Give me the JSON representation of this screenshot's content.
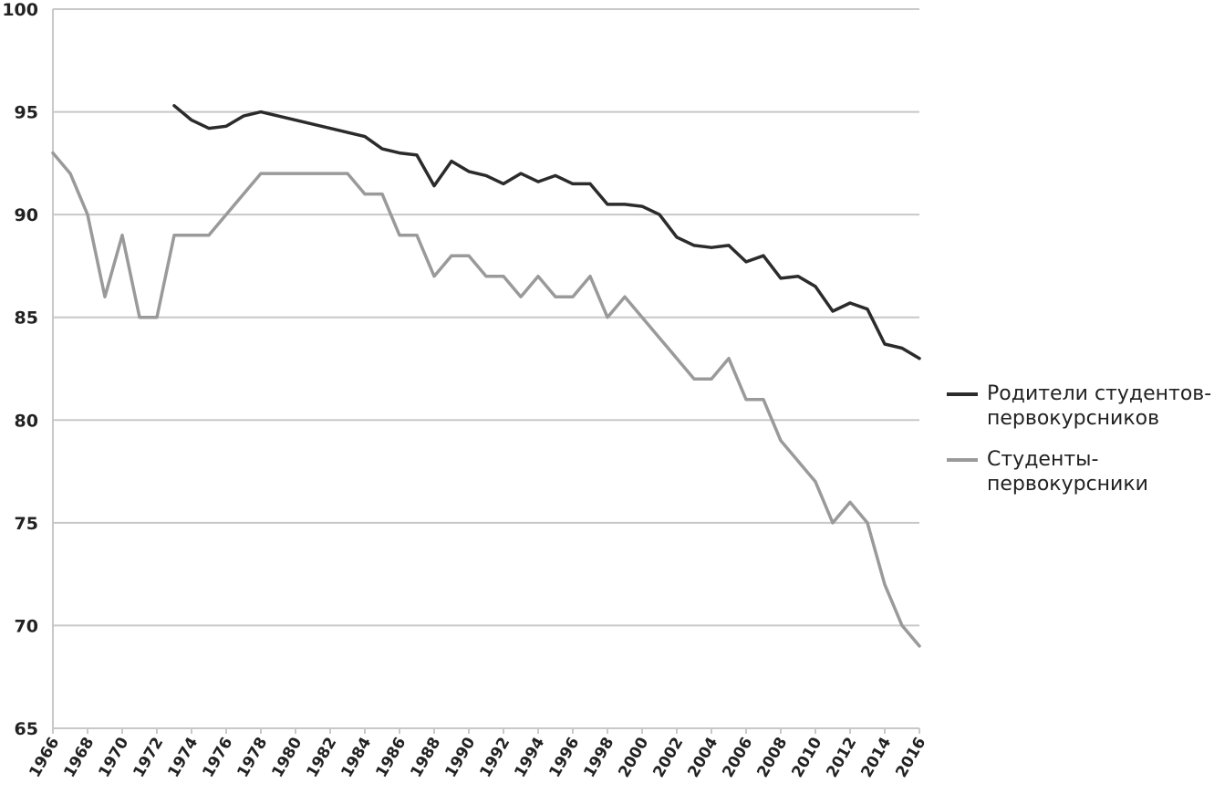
{
  "chart_data": {
    "type": "line",
    "x": [
      1966,
      1967,
      1968,
      1969,
      1970,
      1971,
      1972,
      1973,
      1974,
      1975,
      1976,
      1977,
      1978,
      1979,
      1980,
      1981,
      1982,
      1983,
      1984,
      1985,
      1986,
      1987,
      1988,
      1989,
      1990,
      1991,
      1992,
      1993,
      1994,
      1995,
      1996,
      1997,
      1998,
      1999,
      2000,
      2001,
      2002,
      2003,
      2004,
      2005,
      2006,
      2007,
      2008,
      2009,
      2010,
      2011,
      2012,
      2013,
      2014,
      2015,
      2016
    ],
    "x_tick_labels": [
      "1966",
      "1968",
      "1970",
      "1972",
      "1974",
      "1976",
      "1978",
      "1980",
      "1982",
      "1984",
      "1986",
      "1988",
      "1990",
      "1992",
      "1994",
      "1996",
      "1998",
      "2000",
      "2002",
      "2004",
      "2006",
      "2008",
      "2010",
      "2012",
      "2014",
      "2016"
    ],
    "y_tick_labels": [
      "65",
      "70",
      "75",
      "80",
      "85",
      "90",
      "95",
      "100"
    ],
    "ylim": [
      65,
      100
    ],
    "xlim": [
      1966,
      2016
    ],
    "grid": "horizontal",
    "legend_position": "right",
    "series": [
      {
        "name": "Родители студентов-первокурсников",
        "color": "#2b2b2b",
        "values": [
          null,
          null,
          null,
          null,
          null,
          null,
          null,
          95.3,
          94.6,
          94.2,
          94.3,
          94.8,
          95.0,
          94.8,
          94.6,
          94.4,
          94.2,
          94.0,
          93.8,
          93.2,
          93.0,
          92.9,
          91.4,
          92.6,
          92.1,
          91.9,
          91.5,
          92.0,
          91.6,
          91.9,
          91.5,
          91.5,
          90.5,
          90.5,
          90.4,
          90.0,
          88.9,
          88.5,
          88.4,
          88.5,
          87.7,
          88.0,
          86.9,
          87.0,
          86.5,
          85.3,
          85.7,
          85.4,
          83.7,
          83.5,
          83.0
        ]
      },
      {
        "name": "Студенты-первокурсники",
        "color": "#9a9a9a",
        "values": [
          93,
          92,
          90,
          86,
          89,
          85,
          85,
          89,
          89,
          89,
          90,
          91,
          92,
          92,
          92,
          92,
          92,
          92,
          91,
          91,
          89,
          89,
          87,
          88,
          88,
          87,
          87,
          86,
          87,
          86,
          86,
          87,
          85,
          86,
          85,
          84,
          83,
          82,
          82,
          83,
          81,
          81,
          79,
          78,
          77,
          75,
          76,
          75,
          72,
          70,
          69
        ]
      }
    ]
  }
}
